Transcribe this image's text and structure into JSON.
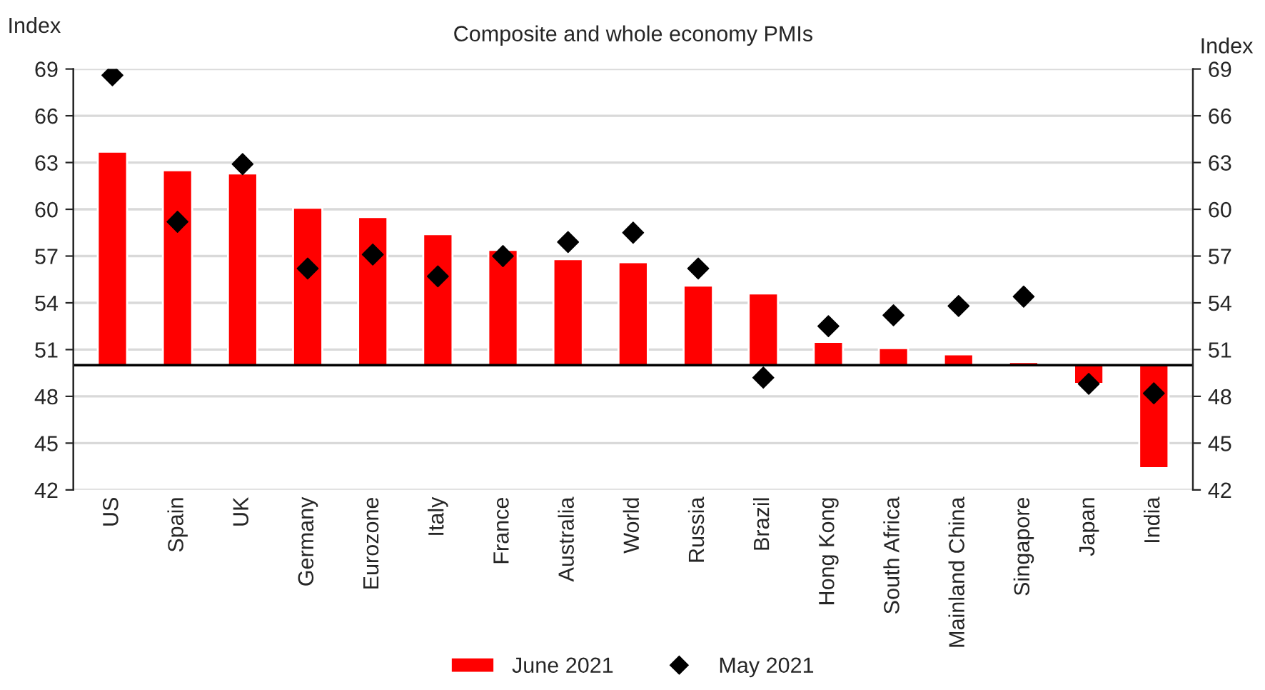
{
  "chart_data": {
    "type": "bar",
    "title": "Composite and whole economy PMIs",
    "ylabel": "Index",
    "y2label": "Index",
    "categories": [
      "US",
      "Spain",
      "UK",
      "Germany",
      "Eurozone",
      "Italy",
      "France",
      "Australia",
      "World",
      "Russia",
      "Brazil",
      "Hong Kong",
      "South Africa",
      "Mainland China",
      "Singapore",
      "Japan",
      "India"
    ],
    "series": [
      {
        "name": "June 2021",
        "color": "#ff0000",
        "base": [
          50,
          50,
          50,
          50,
          50,
          50,
          50,
          50,
          50,
          50,
          50,
          50,
          50,
          50,
          50,
          50,
          50
        ],
        "values": [
          13.7,
          12.5,
          12.3,
          10.1,
          9.5,
          8.4,
          7.4,
          6.8,
          6.6,
          5.1,
          4.6,
          1.5,
          1.1,
          0.7,
          0.2,
          -1.2,
          -6.6
        ]
      },
      {
        "name": "May 2021",
        "type": "scatter",
        "color": "#000000",
        "marker": "diamond",
        "values": [
          68.6,
          59.2,
          62.9,
          56.2,
          57.1,
          55.7,
          57.0,
          57.9,
          58.5,
          56.2,
          49.2,
          52.5,
          53.2,
          53.8,
          54.4,
          48.8,
          48.2
        ]
      }
    ],
    "ylim": [
      42,
      69
    ],
    "yticks": [
      42,
      45,
      48,
      51,
      54,
      57,
      60,
      63,
      66,
      69
    ],
    "y2lim": [
      42,
      69
    ],
    "y2ticks": [
      42,
      45,
      48,
      51,
      54,
      57,
      60,
      63,
      66,
      69
    ],
    "ref_lines": [
      {
        "axis": "y",
        "value": 50,
        "color": "#000000"
      }
    ],
    "grid": "y",
    "legend": "bottom"
  }
}
